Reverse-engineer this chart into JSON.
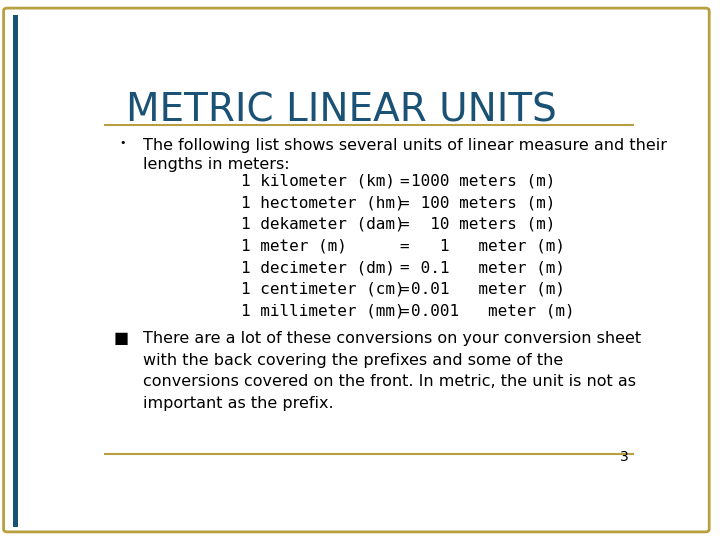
{
  "title": "METRIC LINEAR UNITS",
  "title_color": "#1a5276",
  "title_fontsize": 28,
  "background_color": "#ffffff",
  "border_color": "#b8a040",
  "bullet1_marker": "•",
  "bullet1_text_line1": "The following list shows several units of linear measure and their",
  "bullet1_text_line2": "lengths in meters:",
  "bullet2_marker": "■",
  "bullet2_text": "There are a lot of these conversions on your conversion sheet\nwith the back covering the prefixes and some of the\nconversions covered on the front. In metric, the unit is not as\nimportant as the prefix.",
  "page_number": "3",
  "text_color": "#000000",
  "body_fontsize": 11.5,
  "conv_left": [
    "1 kilometer (km)",
    "1 hectometer (hm)",
    "1 dekameter (dam)",
    "1 meter (m)",
    "1 decimeter (dm)",
    "1 centimeter (cm)",
    "1 millimeter (mm)"
  ],
  "conv_right": [
    "1000 meters (m)",
    " 100 meters (m)",
    "  10 meters (m)",
    "   1   meter (m)",
    " 0.1   meter (m)",
    "0.01   meter (m)",
    "0.001   meter (m)"
  ]
}
